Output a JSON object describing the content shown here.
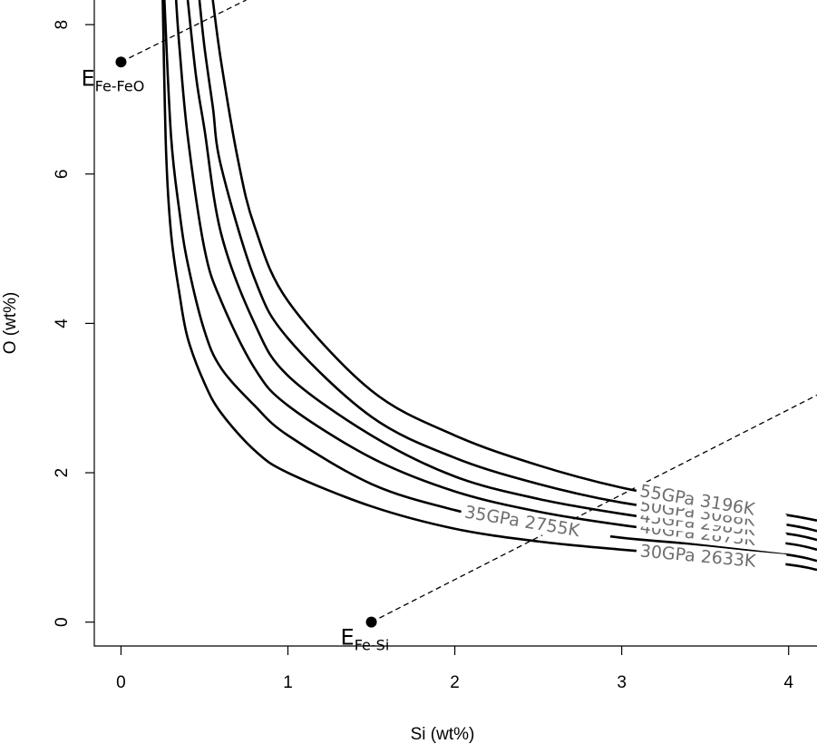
{
  "chart_data": {
    "type": "line",
    "xlabel": "Si (wt%)",
    "ylabel": "O (wt%)",
    "xlim": [
      -0.16,
      4.17
    ],
    "ylim": [
      -0.32,
      8.33
    ],
    "x_ticks": [
      0,
      1,
      2,
      3,
      4
    ],
    "y_ticks": [
      0,
      2,
      4,
      6,
      8
    ],
    "grid": false,
    "series": [
      {
        "name": "30GPa 2633K",
        "x": [
          0.25,
          0.27,
          0.3,
          0.35,
          0.4,
          0.5,
          0.6,
          0.8,
          1.0,
          1.5,
          2.0,
          2.5,
          3.0,
          3.5,
          4.0,
          4.17
        ],
        "y": [
          8.33,
          6.3,
          5.2,
          4.4,
          3.8,
          3.2,
          2.8,
          2.3,
          2.0,
          1.55,
          1.25,
          1.08,
          0.97,
          0.88,
          0.77,
          0.7
        ]
      },
      {
        "name": "35GPa 2755K",
        "x": [
          0.26,
          0.3,
          0.35,
          0.4,
          0.5,
          0.6,
          0.8,
          1.0,
          1.5,
          2.0,
          2.5,
          3.0,
          3.5,
          4.0,
          4.17
        ],
        "y": [
          8.33,
          6.5,
          5.5,
          4.8,
          3.9,
          3.4,
          2.9,
          2.5,
          1.85,
          1.5,
          1.28,
          1.13,
          1.03,
          0.9,
          0.82
        ]
      },
      {
        "name": "40GPa 2873K",
        "x": [
          0.33,
          0.35,
          0.4,
          0.5,
          0.6,
          0.8,
          1.0,
          1.5,
          2.0,
          2.5,
          3.0,
          3.5,
          4.0,
          4.17
        ],
        "y": [
          8.33,
          7.7,
          6.5,
          5.0,
          4.3,
          3.4,
          2.9,
          2.2,
          1.75,
          1.48,
          1.3,
          1.17,
          1.05,
          0.97
        ]
      },
      {
        "name": "45GPa 2985K",
        "x": [
          0.4,
          0.45,
          0.5,
          0.6,
          0.8,
          1.0,
          1.5,
          2.0,
          2.5,
          3.0,
          3.5,
          4.0,
          4.17
        ],
        "y": [
          8.33,
          7.3,
          6.6,
          5.2,
          4.0,
          3.3,
          2.5,
          1.95,
          1.65,
          1.45,
          1.3,
          1.18,
          1.1
        ]
      },
      {
        "name": "50GPa 3088K",
        "x": [
          0.47,
          0.5,
          0.55,
          0.6,
          0.8,
          1.0,
          1.5,
          2.0,
          2.5,
          3.0,
          3.5,
          4.0,
          4.17
        ],
        "y": [
          8.33,
          7.7,
          6.9,
          6.1,
          4.6,
          3.8,
          2.75,
          2.2,
          1.85,
          1.6,
          1.45,
          1.3,
          1.22
        ]
      },
      {
        "name": "55GPa 3196K",
        "x": [
          0.55,
          0.6,
          0.7,
          0.8,
          1.0,
          1.5,
          2.0,
          2.5,
          3.0,
          3.5,
          4.0,
          4.17
        ],
        "y": [
          8.33,
          7.5,
          6.2,
          5.3,
          4.3,
          3.1,
          2.5,
          2.1,
          1.8,
          1.6,
          1.43,
          1.36
        ]
      }
    ],
    "eutectic_points": [
      {
        "name": "E",
        "subscript": "Fe-FeO",
        "x": 0.0,
        "y": 7.5,
        "dashed_line_to": [
          0.75,
          8.33
        ]
      },
      {
        "name": "E",
        "subscript": "Fe-Si",
        "x": 1.5,
        "y": 0.0,
        "dashed_line_to": [
          4.17,
          3.04
        ]
      }
    ]
  }
}
